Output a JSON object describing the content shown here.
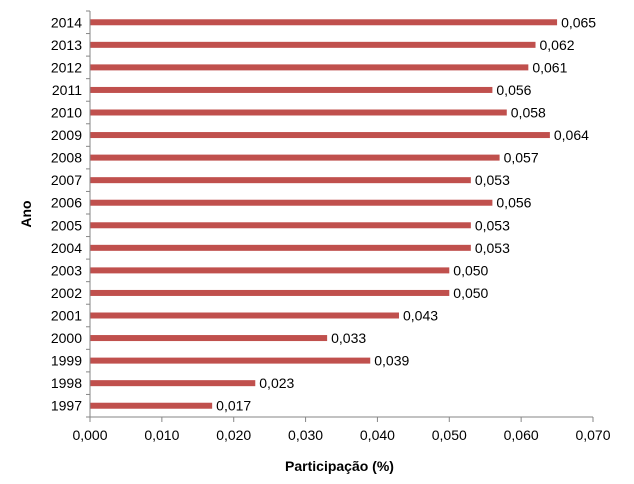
{
  "chart_data": {
    "type": "bar",
    "orientation": "horizontal",
    "title": "",
    "xlabel": "Participação (%)",
    "ylabel": "Ano",
    "categories": [
      "2014",
      "2013",
      "2012",
      "2011",
      "2010",
      "2009",
      "2008",
      "2007",
      "2006",
      "2005",
      "2004",
      "2003",
      "2002",
      "2001",
      "2000",
      "1999",
      "1998",
      "1997"
    ],
    "values": [
      0.065,
      0.062,
      0.061,
      0.056,
      0.058,
      0.064,
      0.057,
      0.053,
      0.056,
      0.053,
      0.053,
      0.05,
      0.05,
      0.043,
      0.033,
      0.039,
      0.023,
      0.017
    ],
    "value_labels": [
      "0,065",
      "0,062",
      "0,061",
      "0,056",
      "0,058",
      "0,064",
      "0,057",
      "0,053",
      "0,056",
      "0,053",
      "0,053",
      "0,050",
      "0,050",
      "0,043",
      "0,033",
      "0,039",
      "0,023",
      "0,017"
    ],
    "xlim": [
      0,
      0.07
    ],
    "x_ticks": [
      0,
      0.01,
      0.02,
      0.03,
      0.04,
      0.05,
      0.06,
      0.07
    ],
    "x_tick_labels": [
      "0,000",
      "0,010",
      "0,020",
      "0,030",
      "0,040",
      "0,050",
      "0,060",
      "0,070"
    ],
    "grid": false,
    "legend": "none",
    "bar_color": "#C0504D"
  }
}
